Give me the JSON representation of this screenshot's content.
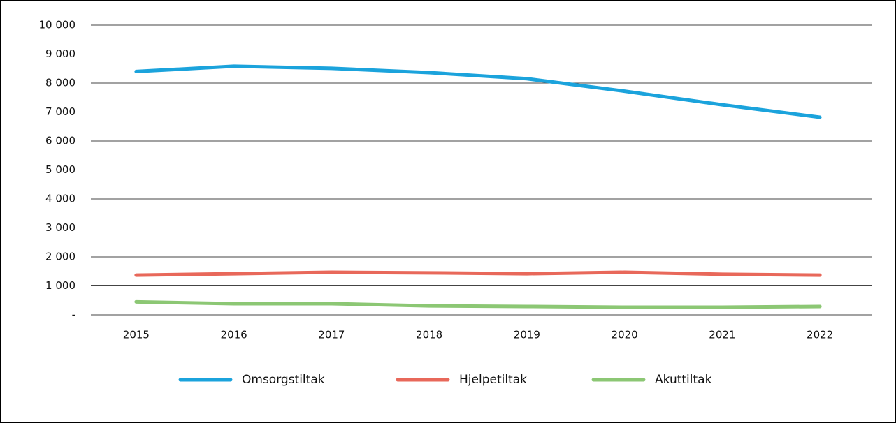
{
  "chart_data": {
    "type": "line",
    "categories": [
      "2015",
      "2016",
      "2017",
      "2018",
      "2019",
      "2020",
      "2021",
      "2022"
    ],
    "series": [
      {
        "name": "Omsorgstiltak",
        "color": "#1ba3dc",
        "values": [
          8400,
          8580,
          8510,
          8360,
          8150,
          7720,
          7250,
          6820
        ]
      },
      {
        "name": "Hjelpetiltak",
        "color": "#e8685a",
        "values": [
          1370,
          1420,
          1470,
          1450,
          1420,
          1470,
          1400,
          1370
        ]
      },
      {
        "name": "Akuttiltak",
        "color": "#8cc774",
        "values": [
          450,
          385,
          385,
          310,
          290,
          265,
          265,
          290
        ]
      }
    ],
    "ylim": [
      0,
      10000
    ],
    "yticks": [
      {
        "value": 0,
        "label": "-"
      },
      {
        "value": 1000,
        "label": "1 000"
      },
      {
        "value": 2000,
        "label": "2 000"
      },
      {
        "value": 3000,
        "label": "3 000"
      },
      {
        "value": 4000,
        "label": "4 000"
      },
      {
        "value": 5000,
        "label": "5 000"
      },
      {
        "value": 6000,
        "label": "6 000"
      },
      {
        "value": 7000,
        "label": "7 000"
      },
      {
        "value": 8000,
        "label": "8 000"
      },
      {
        "value": 9000,
        "label": "9 000"
      },
      {
        "value": 10000,
        "label": "10 000"
      }
    ],
    "grid": true,
    "legend": "bottom"
  }
}
